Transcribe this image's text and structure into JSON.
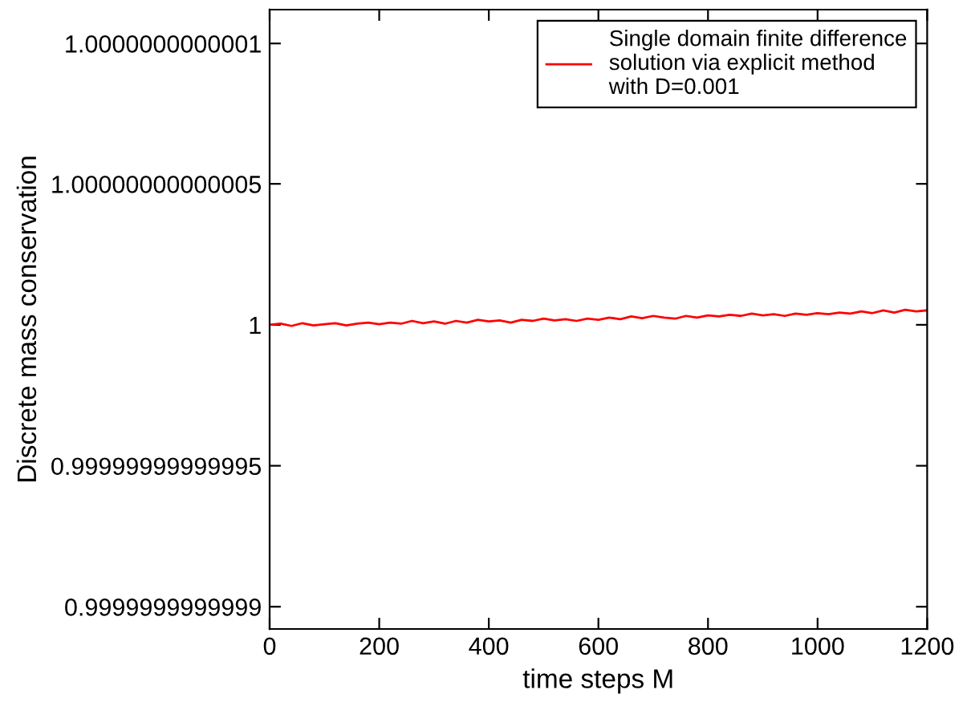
{
  "chart_data": {
    "type": "line",
    "xlabel": "time steps M",
    "ylabel": "Discrete mass conservation",
    "x": [
      0,
      20,
      40,
      60,
      80,
      100,
      120,
      140,
      160,
      180,
      200,
      220,
      240,
      260,
      280,
      300,
      320,
      340,
      360,
      380,
      400,
      420,
      440,
      460,
      480,
      500,
      520,
      540,
      560,
      580,
      600,
      620,
      640,
      660,
      680,
      700,
      720,
      740,
      760,
      780,
      800,
      820,
      840,
      860,
      880,
      900,
      920,
      940,
      960,
      980,
      1000,
      1020,
      1040,
      1060,
      1080,
      1100,
      1120,
      1140,
      1160,
      1180,
      1200
    ],
    "series": [
      {
        "name": "Single domain finite difference\nsolution via explicit method\nwith D=0.001",
        "color": "#ff0000",
        "values": [
          1.0,
          1.0000000000000004,
          0.9999999999999996,
          1.0000000000000007,
          0.9999999999999998,
          1.0000000000000002,
          1.0000000000000007,
          0.9999999999999998,
          1.0000000000000004,
          1.0000000000000009,
          1.0000000000000002,
          1.0000000000000009,
          1.0000000000000004,
          1.0000000000000013,
          1.0000000000000007,
          1.000000000000001,
          1.0000000000000004,
          1.0000000000000013,
          1.0000000000000009,
          1.0000000000000018,
          1.000000000000001,
          1.0000000000000016,
          1.0000000000000009,
          1.0000000000000018,
          1.0000000000000013,
          1.0000000000000022,
          1.0000000000000016,
          1.000000000000002,
          1.0000000000000013,
          1.0000000000000022,
          1.0000000000000018,
          1.0000000000000027,
          1.000000000000002,
          1.0000000000000029,
          1.0000000000000024,
          1.000000000000003,
          1.0000000000000027,
          1.0000000000000022,
          1.000000000000003,
          1.0000000000000027,
          1.0000000000000033,
          1.0000000000000029,
          1.0000000000000036,
          1.000000000000003,
          1.000000000000004,
          1.0000000000000033,
          1.0000000000000038,
          1.000000000000003,
          1.000000000000004,
          1.0000000000000036,
          1.0000000000000042,
          1.0000000000000038,
          1.0000000000000044,
          1.000000000000004,
          1.0000000000000047,
          1.0000000000000042,
          1.000000000000005,
          1.0000000000000044,
          1.0000000000000053,
          1.0000000000000047,
          1.000000000000005
        ]
      }
    ],
    "xlim": [
      0,
      1200
    ],
    "xticks": [
      0,
      200,
      400,
      600,
      800,
      1000,
      1200
    ],
    "ylim": [
      0.999999999999892,
      1.000000000000112
    ],
    "yticks": [
      {
        "value": 0.9999999999999,
        "label": "0.9999999999999"
      },
      {
        "value": 0.99999999999995,
        "label": "0.99999999999995"
      },
      {
        "value": 1,
        "label": "1"
      },
      {
        "value": 1.00000000000005,
        "label": "1.00000000000005"
      },
      {
        "value": 1.0000000000001,
        "label": "1.0000000000001"
      }
    ],
    "legend": "top right",
    "grid": false,
    "marker": "none",
    "line_style": "solid"
  }
}
